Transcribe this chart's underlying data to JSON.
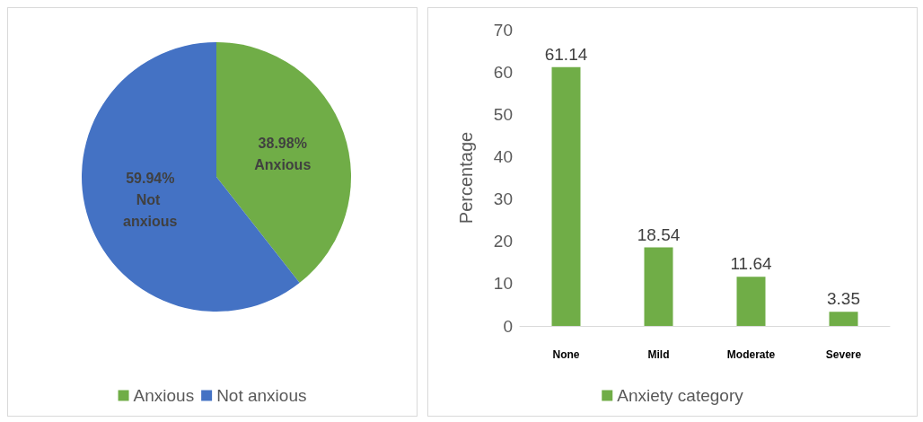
{
  "chart_data": [
    {
      "type": "pie",
      "categories": [
        "Anxious",
        "Not anxious"
      ],
      "values": [
        38.98,
        59.94
      ],
      "colors": [
        "#70ad47",
        "#4472c4"
      ],
      "value_labels": [
        "38.98%",
        "59.94%"
      ],
      "legend": "bottom"
    },
    {
      "type": "bar",
      "categories": [
        "None",
        "Mild",
        "Moderate",
        "Severe"
      ],
      "series": [
        {
          "name": "Anxiety category",
          "color": "#70ad47",
          "values": [
            61.14,
            18.54,
            11.64,
            3.35
          ]
        }
      ],
      "ylabel": "Percentage",
      "ylim": [
        0,
        70
      ],
      "yticks": [
        0,
        10,
        20,
        30,
        40,
        50,
        60,
        70
      ],
      "data_labels": true,
      "grid": false,
      "legend": "bottom"
    }
  ]
}
